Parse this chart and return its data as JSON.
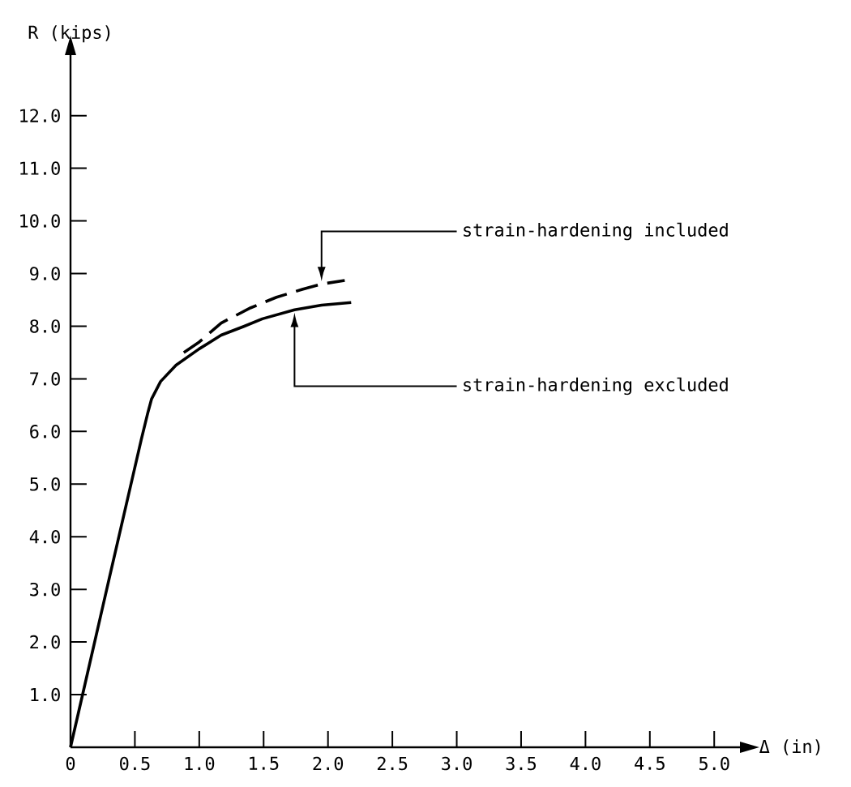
{
  "chart_data": {
    "type": "line",
    "xlabel": "Δ (in)",
    "ylabel": "R (kips)",
    "xlim": [
      0,
      5.2
    ],
    "ylim": [
      0,
      13.15
    ],
    "xticks": [
      0,
      {
        "value": 0.5,
        "label": "0.5"
      },
      {
        "value": 1,
        "label": "1.0"
      },
      {
        "value": 1.5,
        "label": "1.5"
      },
      {
        "value": 2,
        "label": "2.0"
      },
      {
        "value": 2.5,
        "label": "2.5"
      },
      {
        "value": 3,
        "label": "3.0"
      },
      {
        "value": 3.5,
        "label": "3.5"
      },
      {
        "value": 4,
        "label": "4.0"
      },
      {
        "value": 4.5,
        "label": "4.5"
      },
      {
        "value": 5,
        "label": "5.0"
      }
    ],
    "yticks": [
      {
        "value": 1,
        "label": "1.0"
      },
      {
        "value": 2,
        "label": "2.0"
      },
      {
        "value": 3,
        "label": "3.0"
      },
      {
        "value": 4,
        "label": "4.0"
      },
      {
        "value": 5,
        "label": "5.0"
      },
      {
        "value": 6,
        "label": "6.0"
      },
      {
        "value": 7,
        "label": "7.0"
      },
      {
        "value": 8,
        "label": "8.0"
      },
      {
        "value": 9,
        "label": "9.0"
      },
      {
        "value": 10,
        "label": "10.0"
      },
      {
        "value": 11,
        "label": "11.0"
      },
      {
        "value": 12,
        "label": "12.0"
      }
    ],
    "series": [
      {
        "color": "#000000",
        "line_style": "solid",
        "x": [
          0,
          0.3,
          0.55,
          0.6,
          0.63,
          0.7,
          0.82,
          1.0,
          1.17,
          1.35,
          1.49,
          1.74,
          1.95,
          2.18
        ],
        "values": [
          0,
          3.2,
          5.85,
          6.35,
          6.62,
          6.95,
          7.26,
          7.57,
          7.83,
          8.0,
          8.14,
          8.31,
          8.4,
          8.45
        ]
      },
      {
        "color": "#000000",
        "line_style": "dashed",
        "x": [
          0.88,
          1.0,
          1.17,
          1.4,
          1.6,
          1.8,
          1.95,
          2.13
        ],
        "values": [
          7.5,
          7.7,
          8.06,
          8.35,
          8.55,
          8.7,
          8.8,
          8.87
        ]
      }
    ],
    "annotations": [
      "strain-hardening included",
      "strain-hardening excluded"
    ]
  }
}
